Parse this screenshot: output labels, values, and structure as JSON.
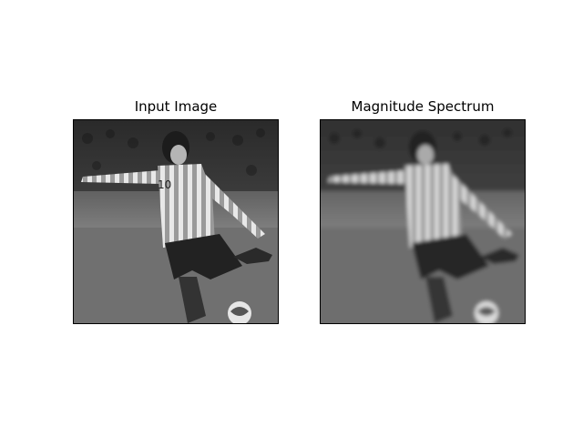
{
  "figure": {
    "panels": [
      {
        "title": "Input Image",
        "image_description": "grayscale photo of soccer player in striped jersey number 10 kicking a ball"
      },
      {
        "title": "Magnitude Spectrum",
        "image_description": "blurred low-pass filtered version of the same grayscale soccer photo"
      }
    ],
    "background": "#ffffff"
  }
}
